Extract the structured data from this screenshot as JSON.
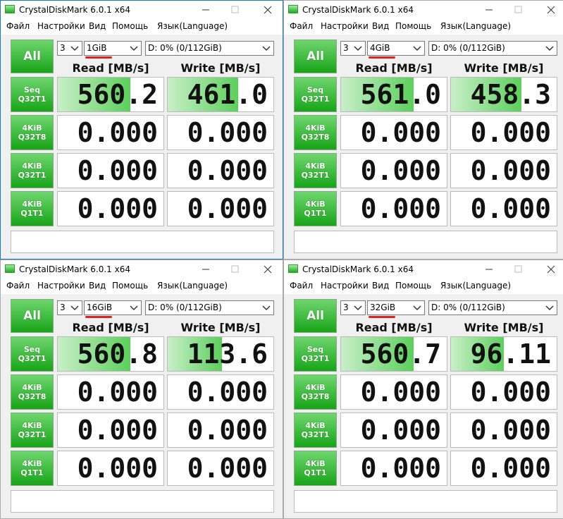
{
  "windows": [
    {
      "title": "CrystalDiskMark 6.0.1 x64",
      "menu": [
        "Файл",
        "Настройки",
        "Вид",
        "Помощь",
        "Язык(Language)"
      ],
      "all_button": "All",
      "count": "3",
      "size": "1GiB",
      "drive": "D: 0% (0/112GiB)",
      "read_header": "Read [MB/s]",
      "write_header": "Write [MB/s]",
      "tests": [
        {
          "label": [
            "Seq",
            "Q32T1"
          ],
          "read": "560.2",
          "write": "461.0"
        },
        {
          "label": [
            "4KiB",
            "Q32T8"
          ],
          "read": "0.000",
          "write": "0.000"
        },
        {
          "label": [
            "4KiB",
            "Q32T1"
          ],
          "read": "0.000",
          "write": "0.000"
        },
        {
          "label": [
            "4KiB",
            "Q1T1"
          ],
          "read": "0.000",
          "write": "0.000"
        }
      ]
    },
    {
      "title": "CrystalDiskMark 6.0.1 x64",
      "menu": [
        "Файл",
        "Настройки",
        "Вид",
        "Помощь",
        "Язык(Language)"
      ],
      "all_button": "All",
      "count": "3",
      "size": "4GiB",
      "drive": "D: 0% (0/112GiB)",
      "read_header": "Read [MB/s]",
      "write_header": "Write [MB/s]",
      "tests": [
        {
          "label": [
            "Seq",
            "Q32T1"
          ],
          "read": "561.0",
          "write": "458.3"
        },
        {
          "label": [
            "4KiB",
            "Q32T8"
          ],
          "read": "0.000",
          "write": "0.000"
        },
        {
          "label": [
            "4KiB",
            "Q32T1"
          ],
          "read": "0.000",
          "write": "0.000"
        },
        {
          "label": [
            "4KiB",
            "Q1T1"
          ],
          "read": "0.000",
          "write": "0.000"
        }
      ]
    },
    {
      "title": "CrystalDiskMark 6.0.1 x64",
      "menu": [
        "Файл",
        "Настройки",
        "Вид",
        "Помощь",
        "Язык(Language)"
      ],
      "all_button": "All",
      "count": "3",
      "size": "16GiB",
      "drive": "D: 0% (0/112GiB)",
      "read_header": "Read [MB/s]",
      "write_header": "Write [MB/s]",
      "tests": [
        {
          "label": [
            "Seq",
            "Q32T1"
          ],
          "read": "560.8",
          "write": "113.6"
        },
        {
          "label": [
            "4KiB",
            "Q32T8"
          ],
          "read": "0.000",
          "write": "0.000"
        },
        {
          "label": [
            "4KiB",
            "Q32T1"
          ],
          "read": "0.000",
          "write": "0.000"
        },
        {
          "label": [
            "4KiB",
            "Q1T1"
          ],
          "read": "0.000",
          "write": "0.000"
        }
      ]
    },
    {
      "title": "CrystalDiskMark 6.0.1 x64",
      "menu": [
        "Файл",
        "Настройки",
        "Вид",
        "Помощь",
        "Язык(Language)"
      ],
      "all_button": "All",
      "count": "3",
      "size": "32GiB",
      "drive": "D: 0% (0/112GiB)",
      "read_header": "Read [MB/s]",
      "write_header": "Write [MB/s]",
      "tests": [
        {
          "label": [
            "Seq",
            "Q32T1"
          ],
          "read": "560.7",
          "write": "96.11"
        },
        {
          "label": [
            "4KiB",
            "Q32T8"
          ],
          "read": "0.000",
          "write": "0.000"
        },
        {
          "label": [
            "4KiB",
            "Q32T1"
          ],
          "read": "0.000",
          "write": "0.000"
        },
        {
          "label": [
            "4KiB",
            "Q1T1"
          ],
          "read": "0.000",
          "write": "0.000"
        }
      ]
    }
  ]
}
